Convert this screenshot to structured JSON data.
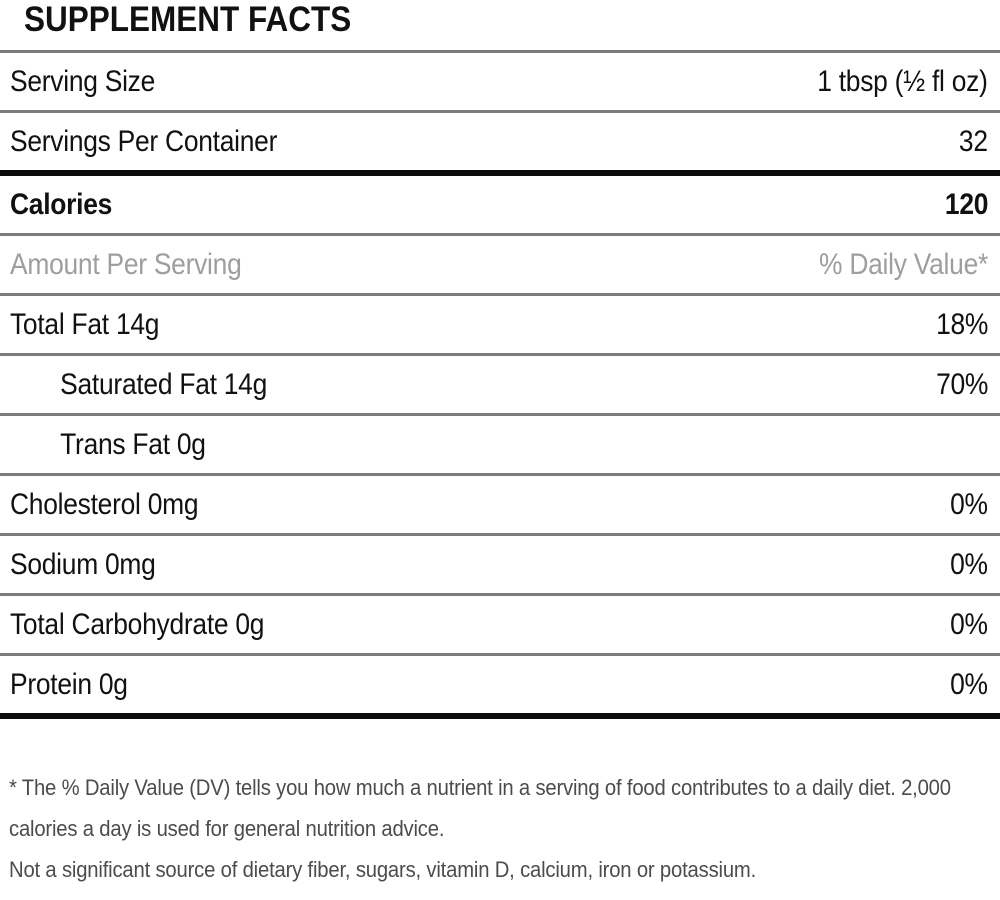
{
  "title": "SUPPLEMENT FACTS",
  "serving_info": [
    {
      "label": "Serving Size",
      "value": "1 tbsp (½ fl oz)"
    },
    {
      "label": "Servings Per Container",
      "value": "32"
    }
  ],
  "calories": {
    "label": "Calories",
    "value": "120"
  },
  "column_header": {
    "label": "Amount Per Serving",
    "value": "% Daily Value*"
  },
  "nutrients": [
    {
      "label": "Total Fat 14g",
      "daily_value": "18%"
    },
    {
      "label": "Saturated Fat 14g",
      "daily_value": "70%"
    },
    {
      "label": "Trans Fat 0g",
      "daily_value": ""
    },
    {
      "label": "Cholesterol 0mg",
      "daily_value": "0%"
    },
    {
      "label": "Sodium 0mg",
      "daily_value": "0%"
    },
    {
      "label": "Total Carbohydrate 0g",
      "daily_value": "0%"
    },
    {
      "label": "Protein 0g",
      "daily_value": "0%"
    }
  ],
  "footnotes": [
    "* The % Daily Value (DV) tells you how much a nutrient in a serving of food contributes to a daily diet. 2,000 calories a day is used for general nutrition advice.",
    "Not a significant source of dietary fiber, sugars, vitamin D, calcium, iron or potassium."
  ],
  "colors": {
    "text": "#111111",
    "muted_text": "#9e9e9e",
    "separator": "#7b7b7b",
    "thick_rule": "#0c0c0c",
    "footnote_text": "#4c4c4c",
    "background": "#ffffff"
  }
}
